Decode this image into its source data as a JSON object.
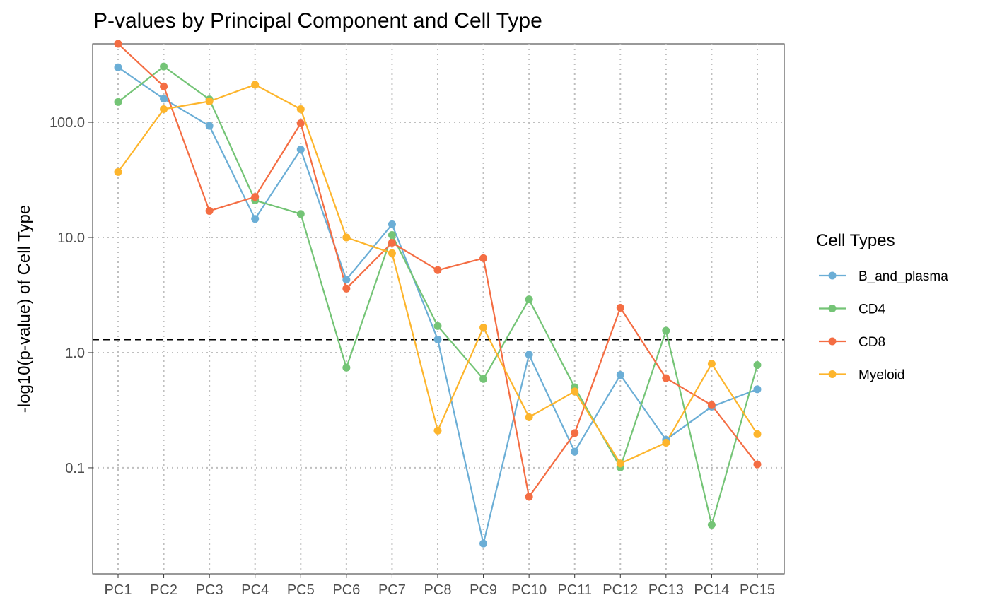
{
  "chart_data": {
    "type": "line",
    "title": "P-values by Principal Component and Cell Type",
    "xlabel": "",
    "ylabel": "-log10(p-value) of Cell Type",
    "y_scale": "log10",
    "ylim": [
      0.012,
      480
    ],
    "y_ticks": [
      0.1,
      1.0,
      10.0,
      100.0
    ],
    "y_tick_labels": [
      "0.1",
      "1.0",
      "10.0",
      "100.0"
    ],
    "categories": [
      "PC1",
      "PC2",
      "PC3",
      "PC4",
      "PC5",
      "PC6",
      "PC7",
      "PC8",
      "PC9",
      "PC10",
      "PC11",
      "PC12",
      "PC13",
      "PC14",
      "PC15"
    ],
    "threshold_line": {
      "value": 1.3,
      "style": "dashed",
      "color": "#000000"
    },
    "grid": "dotted",
    "legend": {
      "title": "Cell Types",
      "position": "right"
    },
    "series": [
      {
        "name": "B_and_plasma",
        "color": "#6BAED6",
        "values": [
          300,
          160,
          93,
          14.5,
          58,
          4.3,
          13,
          1.3,
          0.022,
          0.96,
          0.138,
          0.64,
          0.175,
          0.34,
          0.48
        ]
      },
      {
        "name": "CD4",
        "color": "#74C476",
        "values": [
          150,
          305,
          158,
          21,
          16,
          0.74,
          10.5,
          1.7,
          0.59,
          2.9,
          0.5,
          0.101,
          1.55,
          0.032,
          0.78
        ]
      },
      {
        "name": "CD8",
        "color": "#F46D43",
        "values": [
          480,
          205,
          17,
          22.5,
          98,
          3.6,
          9.0,
          5.2,
          6.6,
          0.056,
          0.2,
          2.45,
          0.6,
          0.35,
          0.107
        ]
      },
      {
        "name": "Myeloid",
        "color": "#FDB52C",
        "values": [
          37,
          130,
          152,
          212,
          130,
          10,
          7.3,
          0.21,
          1.65,
          0.275,
          0.46,
          0.109,
          0.165,
          0.8,
          0.196
        ]
      }
    ]
  }
}
